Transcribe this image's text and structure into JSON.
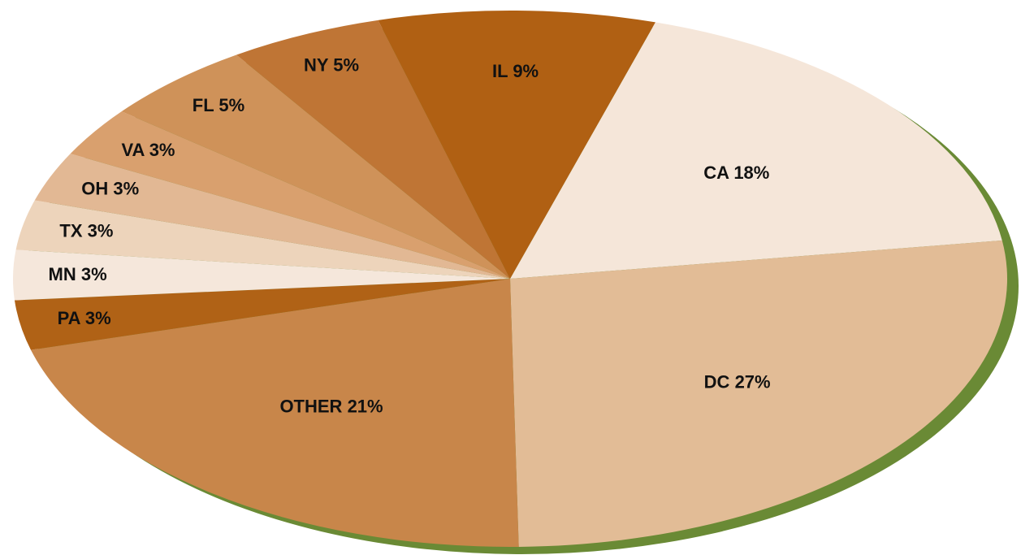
{
  "chart_data": {
    "type": "pie",
    "categories": [
      "CA",
      "DC",
      "OTHER",
      "PA",
      "MN",
      "TX",
      "OH",
      "VA",
      "FL",
      "NY",
      "IL"
    ],
    "values": [
      18,
      27,
      21,
      3,
      3,
      3,
      3,
      3,
      5,
      5,
      9
    ],
    "value_labels": [
      "18%",
      "27%",
      "21%",
      "3%",
      "3%",
      "3%",
      "3%",
      "3%",
      "5%",
      "5%",
      "9%"
    ],
    "colors": [
      "#f5e6d9",
      "#e2bc96",
      "#c8864a",
      "#b06216",
      "#f5e7db",
      "#edd4bb",
      "#e2b894",
      "#d9a06e",
      "#cf9259",
      "#bf7535",
      "#b06013"
    ],
    "shadow_color": "#6a8a35"
  }
}
